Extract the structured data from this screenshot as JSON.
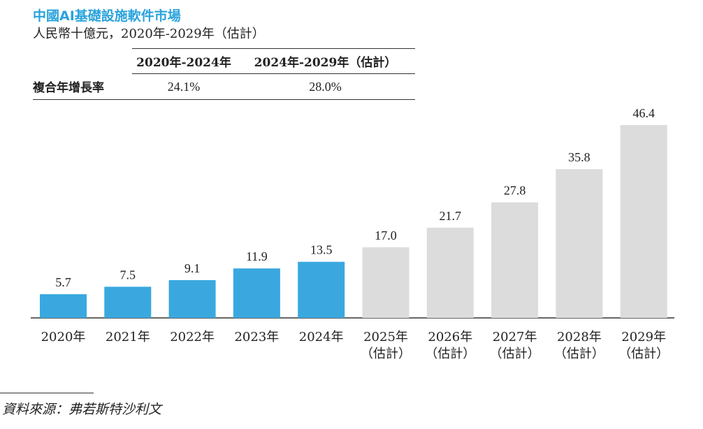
{
  "title": "中國AI基礎設施軟件市場",
  "subtitle": "人民幣十億元，2020年-2029年（估計）",
  "cagr_table": {
    "headers": [
      "2020年-2024年",
      "2024年-2029年（估計）"
    ],
    "row_label": "複合年增長率",
    "values": [
      "24.1%",
      "28.0%"
    ]
  },
  "source": "資料來源：弗若斯特沙利文",
  "colors": {
    "actual": "#3aa8df",
    "estimate": "#dcdcdc",
    "title": "#29a3dc"
  },
  "chart_data": {
    "type": "bar",
    "title": "中國AI基礎設施軟件市場",
    "ylabel": "人民幣十億元",
    "categories": [
      [
        "2020年"
      ],
      [
        "2021年"
      ],
      [
        "2022年"
      ],
      [
        "2023年"
      ],
      [
        "2024年"
      ],
      [
        "2025年",
        "（估計）"
      ],
      [
        "2026年",
        "（估計）"
      ],
      [
        "2027年",
        "（估計）"
      ],
      [
        "2028年",
        "（估計）"
      ],
      [
        "2029年",
        "（估計）"
      ]
    ],
    "values": [
      5.7,
      7.5,
      9.1,
      11.9,
      13.5,
      17.0,
      21.7,
      27.8,
      35.8,
      46.4
    ],
    "value_labels": [
      "5.7",
      "7.5",
      "9.1",
      "11.9",
      "13.5",
      "17.0",
      "21.7",
      "27.8",
      "35.8",
      "46.4"
    ],
    "estimated": [
      false,
      false,
      false,
      false,
      false,
      true,
      true,
      true,
      true,
      true
    ],
    "ylim": [
      0,
      50
    ],
    "grid": false
  }
}
